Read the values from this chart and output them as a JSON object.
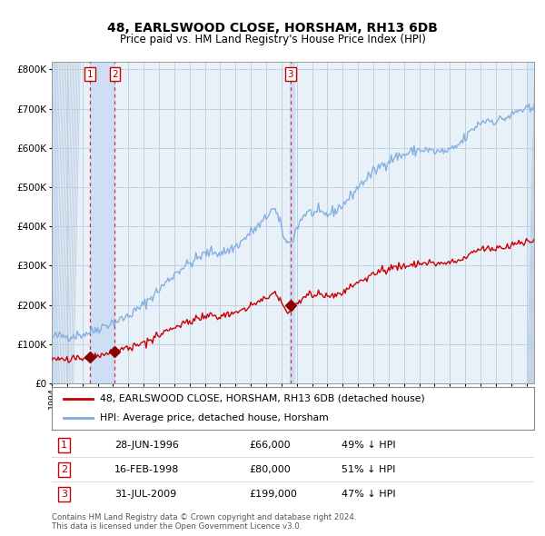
{
  "title": "48, EARLSWOOD CLOSE, HORSHAM, RH13 6DB",
  "subtitle": "Price paid vs. HM Land Registry's House Price Index (HPI)",
  "legend_line1": "48, EARLSWOOD CLOSE, HORSHAM, RH13 6DB (detached house)",
  "legend_line2": "HPI: Average price, detached house, Horsham",
  "transactions": [
    {
      "num": 1,
      "date": "28-JUN-1996",
      "price": 66000,
      "pct": "49%",
      "dir": "↓"
    },
    {
      "num": 2,
      "date": "16-FEB-1998",
      "price": 80000,
      "pct": "51%",
      "dir": "↓"
    },
    {
      "num": 3,
      "date": "31-JUL-2009",
      "price": 199000,
      "pct": "47%",
      "dir": "↓"
    }
  ],
  "transaction_dates_decimal": [
    1996.49,
    1998.12,
    2009.58
  ],
  "transaction_prices": [
    66000,
    80000,
    199000
  ],
  "hpi_color": "#7aaadd",
  "price_color": "#cc0000",
  "marker_color": "#880000",
  "vline_color": "#cc3333",
  "highlight_color": "#ccddf5",
  "plot_bg": "#e8f0f8",
  "hatch_bg": "#d8e8f5",
  "grid_color": "#bbccdd",
  "footnote1": "Contains HM Land Registry data © Crown copyright and database right 2024.",
  "footnote2": "This data is licensed under the Open Government Licence v3.0.",
  "ylim": [
    0,
    820000
  ],
  "yticks": [
    0,
    100000,
    200000,
    300000,
    400000,
    500000,
    600000,
    700000,
    800000
  ],
  "xstart": 1994.0,
  "xend": 2025.5
}
